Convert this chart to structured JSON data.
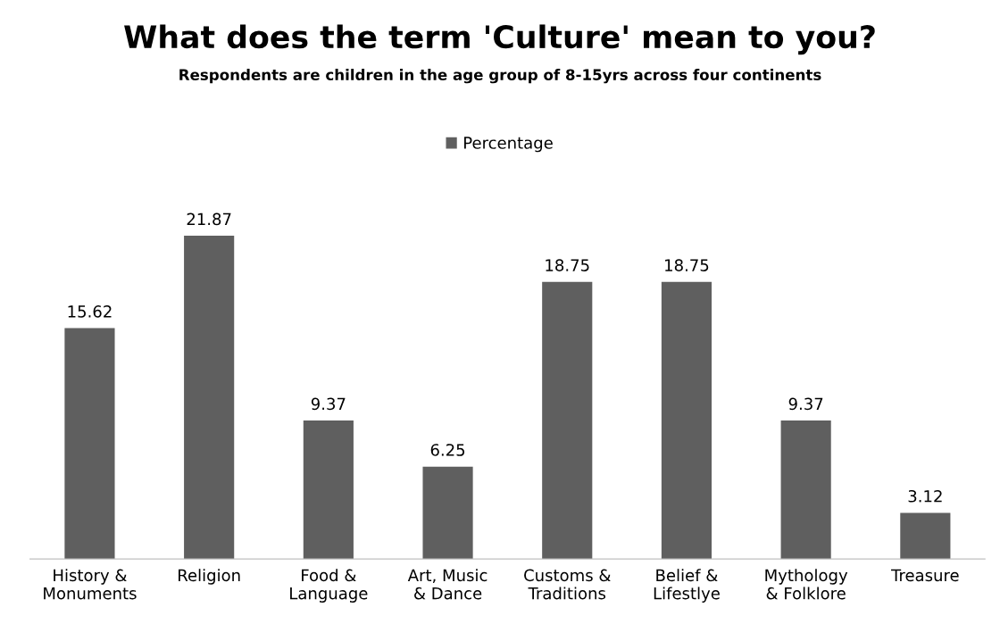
{
  "chart_data": {
    "type": "bar",
    "title": "What does the term 'Culture' mean to you?",
    "subtitle": "Respondents are children in the age group of 8-15yrs across four continents",
    "categories": [
      "History &\nMonuments",
      "Religion",
      "Food &\nLanguage",
      "Art, Music\n& Dance",
      "Customs &\nTraditions",
      "Belief &\nLifestlye",
      "Mythology\n& Folklore",
      "Treasure"
    ],
    "series": [
      {
        "name": "Percentage",
        "color": "#5f5f5f",
        "values": [
          15.62,
          21.87,
          9.37,
          6.25,
          18.75,
          18.75,
          9.37,
          3.12
        ]
      }
    ],
    "data_labels": true,
    "legend": "top",
    "grid": false,
    "tick_labels": "x"
  }
}
